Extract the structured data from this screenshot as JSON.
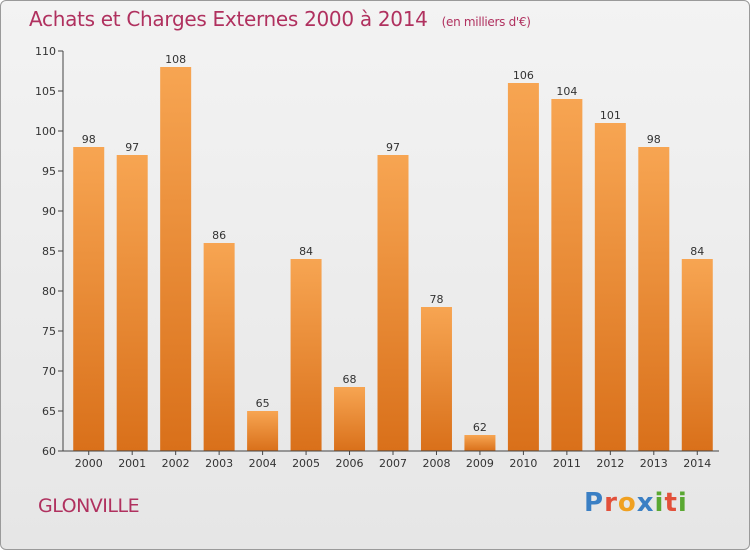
{
  "header": {
    "title": "Achats et Charges Externes 2000 à 2014",
    "units": "(en milliers d'€)"
  },
  "footer": {
    "place": "GLONVILLE",
    "logo": "Proxiti"
  },
  "colors": {
    "bar_light": "#f7a552",
    "bar_dark": "#d9701a",
    "title": "#b0315f",
    "axis": "#444444"
  },
  "chart_data": {
    "type": "bar",
    "title": "Achats et Charges Externes 2000 à 2014",
    "subtitle": "(en milliers d'€)",
    "categories": [
      "2000",
      "2001",
      "2002",
      "2003",
      "2004",
      "2005",
      "2006",
      "2007",
      "2008",
      "2009",
      "2010",
      "2011",
      "2012",
      "2013",
      "2014"
    ],
    "values": [
      98,
      97,
      108,
      86,
      65,
      84,
      68,
      97,
      78,
      62,
      106,
      104,
      101,
      98,
      84
    ],
    "xlabel": "",
    "ylabel": "",
    "ylim": [
      60,
      110
    ],
    "yticks": [
      60,
      65,
      70,
      75,
      80,
      85,
      90,
      95,
      100,
      105,
      110
    ],
    "grid": false,
    "legend": "none"
  }
}
